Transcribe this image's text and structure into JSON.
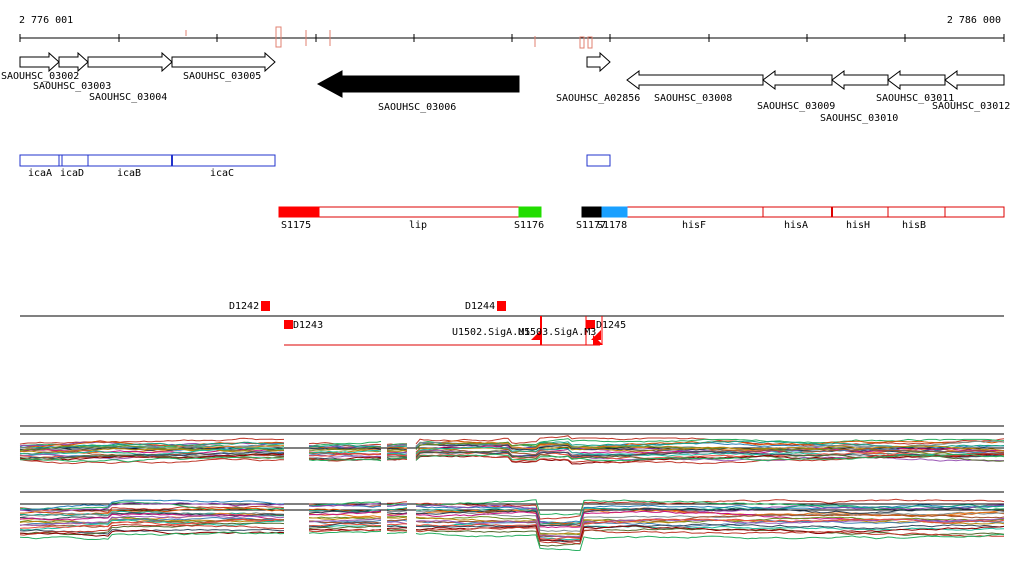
{
  "coords": {
    "start_label": "2 776 001",
    "end_label": "2 786 000"
  },
  "colors": {
    "black": "#000000",
    "gene_fill": "#ffffff",
    "region_blue": "#2233cc",
    "segment_red": "#ff0000",
    "green": "#22dd00",
    "cyan": "#1aa0ff",
    "tick_light": "#f0b0a0"
  },
  "genes": [
    {
      "name": "SAOUHSC_03002",
      "strand": "+"
    },
    {
      "name": "SAOUHSC_03003",
      "strand": "+"
    },
    {
      "name": "SAOUHSC_03004",
      "strand": "+"
    },
    {
      "name": "SAOUHSC_03005",
      "strand": "+"
    },
    {
      "name": "SAOUHSC_03006",
      "strand": "-",
      "highlighted": true
    },
    {
      "name": "SAOUHSC_A02856",
      "strand": "+"
    },
    {
      "name": "SAOUHSC_03008",
      "strand": "-"
    },
    {
      "name": "SAOUHSC_03009",
      "strand": "-"
    },
    {
      "name": "SAOUHSC_03010",
      "strand": "-"
    },
    {
      "name": "SAOUHSC_03011",
      "strand": "-"
    },
    {
      "name": "SAOUHSC_03012",
      "strand": "-"
    }
  ],
  "operon_genes": [
    "icaA",
    "icaD",
    "icaB",
    "icaC"
  ],
  "segments": [
    {
      "label": "S1175",
      "color": "red"
    },
    {
      "label": "lip",
      "color": "none"
    },
    {
      "label": "S1176",
      "color": "green"
    },
    {
      "label": "S1177",
      "color": "black"
    },
    {
      "label": "S1178",
      "color": "cyan"
    },
    {
      "label": "hisF",
      "color": "none"
    },
    {
      "label": "hisA",
      "color": "none"
    },
    {
      "label": "hisH",
      "color": "none"
    },
    {
      "label": "hisB",
      "color": "none"
    }
  ],
  "features": [
    "D1242",
    "D1243",
    "D1244",
    "D1245",
    "U1502.SigA.M5",
    "U1503.SigA.M3"
  ]
}
